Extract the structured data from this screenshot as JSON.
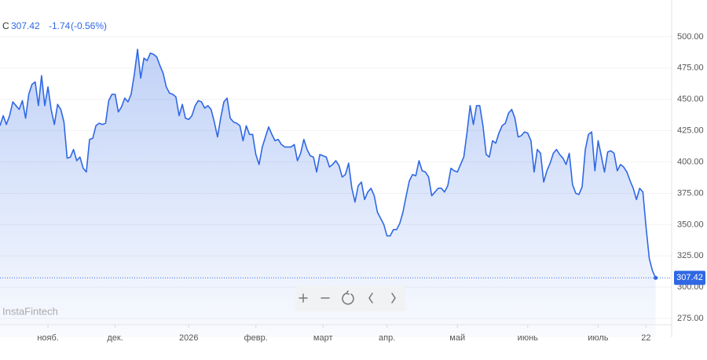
{
  "header": {
    "symbol": "C",
    "change": "-1.74",
    "change_percent": "(-0.56%)"
  },
  "watermark": "InstaFintech",
  "chart_data": {
    "type": "line",
    "color": "#2f68e4",
    "grid": true,
    "last_value_marker": true,
    "values": [
      429,
      437,
      430,
      437,
      448,
      445,
      442,
      449,
      435,
      454,
      462,
      464,
      445,
      469,
      445,
      460,
      442,
      430,
      446,
      442,
      432,
      403,
      404,
      410,
      401,
      404,
      395,
      392,
      418,
      419,
      429,
      431,
      430,
      431,
      449,
      454,
      454,
      440,
      444,
      451,
      448,
      454,
      470,
      490,
      467,
      483,
      481,
      487,
      486,
      484,
      477,
      471,
      460,
      455,
      454,
      452,
      437,
      446,
      435,
      434,
      437,
      445,
      449,
      448,
      443,
      445,
      442,
      432,
      420,
      435,
      448,
      451,
      435,
      432,
      431,
      429,
      417,
      429,
      422,
      422,
      406,
      398,
      412,
      420,
      428,
      422,
      417,
      418,
      414,
      412,
      412,
      412,
      414,
      401,
      407,
      418,
      410,
      405,
      404,
      392,
      406,
      405,
      404,
      396,
      398,
      401,
      397,
      388,
      390,
      399,
      379,
      368,
      381,
      384,
      370,
      376,
      379,
      373,
      360,
      355,
      350,
      341,
      341,
      346,
      346,
      351,
      360,
      373,
      385,
      390,
      389,
      401,
      393,
      392,
      388,
      373,
      376,
      379,
      379,
      376,
      381,
      395,
      393,
      392,
      398,
      404,
      423,
      445,
      430,
      445,
      445,
      429,
      406,
      404,
      417,
      415,
      423,
      429,
      431,
      439,
      442,
      435,
      420,
      421,
      424,
      423,
      417,
      392,
      410,
      407,
      384,
      393,
      399,
      407,
      410,
      406,
      403,
      398,
      407,
      382,
      375,
      374,
      380,
      410,
      422,
      424,
      393,
      417,
      405,
      392,
      408,
      409,
      407,
      393,
      398,
      396,
      392,
      385,
      379,
      370,
      379,
      376,
      348,
      323,
      313,
      307.42
    ],
    "xlim": [
      0,
      210
    ],
    "xticks": [
      {
        "value": 15,
        "label": "нояб."
      },
      {
        "value": 36,
        "label": "дек."
      },
      {
        "value": 59,
        "label": "2026"
      },
      {
        "value": 80,
        "label": "февр."
      },
      {
        "value": 101,
        "label": "март"
      },
      {
        "value": 121,
        "label": "апр."
      },
      {
        "value": 143,
        "label": "май"
      },
      {
        "value": 165,
        "label": "июнь"
      },
      {
        "value": 187,
        "label": "июль"
      },
      {
        "value": 202,
        "label": "22"
      }
    ],
    "ylim": [
      260,
      520
    ],
    "yticks": [
      {
        "value": 275,
        "label": "275.00"
      },
      {
        "value": 300,
        "label": "300.00"
      },
      {
        "value": 325,
        "label": "325.00"
      },
      {
        "value": 350,
        "label": "350.00"
      },
      {
        "value": 375,
        "label": "375.00"
      },
      {
        "value": 400,
        "label": "400.00"
      },
      {
        "value": 425,
        "label": "425.00"
      },
      {
        "value": 450,
        "label": "450.00"
      },
      {
        "value": 475,
        "label": "475.00"
      },
      {
        "value": 500,
        "label": "500.00"
      }
    ]
  }
}
